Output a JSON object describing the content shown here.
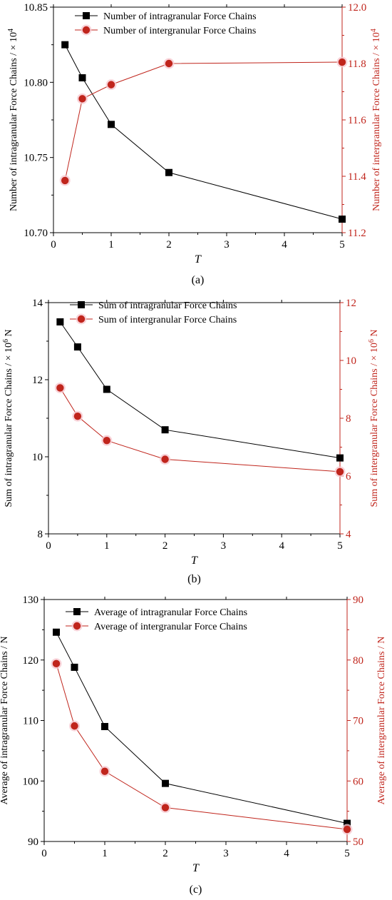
{
  "chart_data": [
    {
      "type": "line",
      "panel_label": "(a)",
      "xlabel": "T",
      "ylabel_left": "Number of intragranular Force Chains / × 10",
      "ylabel_left_sup": "4",
      "ylabel_right": "Number of intergranular Force Chains / × 10",
      "ylabel_right_sup": "4",
      "xlim": [
        0,
        5
      ],
      "ylim_left": [
        10.7,
        10.85
      ],
      "ylim_right": [
        11.2,
        12.0
      ],
      "x_ticks": [
        "0",
        "1",
        "2",
        "3",
        "4",
        "5"
      ],
      "y_ticks_left": [
        "10.70",
        "10.75",
        "10.80",
        "10.85"
      ],
      "y_ticks_right": [
        "11.2",
        "11.4",
        "11.6",
        "11.8",
        "12.0"
      ],
      "legend_position": "top-left",
      "series": [
        {
          "name": "Number of intragranular Force Chains",
          "axis": "left",
          "marker": "square",
          "color": "#000000",
          "x": [
            0.2,
            0.5,
            1,
            2,
            5
          ],
          "y": [
            10.825,
            10.803,
            10.772,
            10.74,
            10.709
          ]
        },
        {
          "name": "Number of intergranular Force Chains",
          "axis": "right",
          "marker": "circle",
          "color": "#c0251c",
          "x": [
            0.2,
            0.5,
            1,
            2,
            5
          ],
          "y": [
            11.385,
            11.675,
            11.725,
            11.8,
            11.805
          ]
        }
      ]
    },
    {
      "type": "line",
      "panel_label": "(b)",
      "xlabel": "T",
      "ylabel_left": "Sum of intragranular Force Chains / × 10",
      "ylabel_left_sup": "6",
      "ylabel_left_unit": " N",
      "ylabel_right": "Sum of intergranular Force Chains / × 10",
      "ylabel_right_sup": "6",
      "ylabel_right_unit": " N",
      "xlim": [
        0,
        5
      ],
      "ylim_left": [
        8,
        14
      ],
      "ylim_right": [
        4,
        12
      ],
      "x_ticks": [
        "0",
        "1",
        "2",
        "3",
        "4",
        "5"
      ],
      "y_ticks_left": [
        "8",
        "10",
        "12",
        "14"
      ],
      "y_ticks_right": [
        "4",
        "6",
        "8",
        "10",
        "12"
      ],
      "legend_position": "top-left",
      "series": [
        {
          "name": "Sum of intragranular Force Chains",
          "axis": "left",
          "marker": "square",
          "color": "#000000",
          "x": [
            0.2,
            0.5,
            1,
            2,
            5
          ],
          "y": [
            13.5,
            12.85,
            11.75,
            10.7,
            9.97
          ]
        },
        {
          "name": "Sum of intergranular Force Chains",
          "axis": "right",
          "marker": "circle",
          "color": "#c0251c",
          "x": [
            0.2,
            0.5,
            1,
            2,
            5
          ],
          "y": [
            9.05,
            8.07,
            7.23,
            6.58,
            6.15
          ]
        }
      ]
    },
    {
      "type": "line",
      "panel_label": "(c)",
      "xlabel": "T",
      "ylabel_left": "Average of intragranular Force Chains / N",
      "ylabel_right": "Average of intergranular Force Chains / N",
      "xlim": [
        0,
        5
      ],
      "ylim_left": [
        90,
        130
      ],
      "ylim_right": [
        50,
        90
      ],
      "x_ticks": [
        "0",
        "1",
        "2",
        "3",
        "4",
        "5"
      ],
      "y_ticks_left": [
        "90",
        "100",
        "110",
        "120",
        "130"
      ],
      "y_ticks_right": [
        "50",
        "60",
        "70",
        "80",
        "90"
      ],
      "legend_position": "top-left",
      "series": [
        {
          "name": "Average of intragranular Force Chains",
          "axis": "left",
          "marker": "square",
          "color": "#000000",
          "x": [
            0.2,
            0.5,
            1,
            2,
            5
          ],
          "y": [
            124.6,
            118.8,
            109.0,
            99.6,
            93.0
          ]
        },
        {
          "name": "Average of intergranular Force Chains",
          "axis": "right",
          "marker": "circle",
          "color": "#c0251c",
          "x": [
            0.2,
            0.5,
            1,
            2,
            5
          ],
          "y": [
            79.4,
            69.1,
            61.6,
            55.6,
            52.0
          ]
        }
      ]
    }
  ]
}
